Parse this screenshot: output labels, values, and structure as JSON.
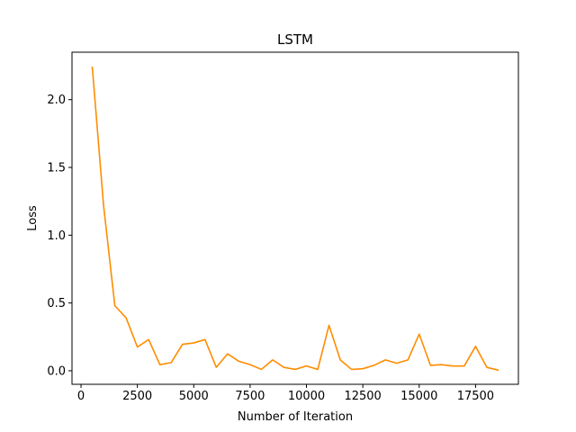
{
  "chart_data": {
    "type": "line",
    "title": "LSTM",
    "xlabel": "Number of Iteration",
    "ylabel": "Loss",
    "xlim": [
      -400,
      19400
    ],
    "ylim": [
      -0.1,
      2.35
    ],
    "grid": false,
    "x_ticks": [
      0,
      2500,
      5000,
      7500,
      10000,
      12500,
      15000,
      17500
    ],
    "x_tick_labels": [
      "0",
      "2500",
      "5000",
      "7500",
      "10000",
      "12500",
      "15000",
      "17500"
    ],
    "y_ticks": [
      0.0,
      0.5,
      1.0,
      1.5,
      2.0
    ],
    "y_tick_labels": [
      "0.0",
      "0.5",
      "1.0",
      "1.5",
      "2.0"
    ],
    "series": [
      {
        "color": "#ff8c00",
        "x": [
          500,
          1000,
          1500,
          2000,
          2500,
          3000,
          3500,
          4000,
          4500,
          5000,
          5500,
          6000,
          6500,
          7000,
          7500,
          8000,
          8500,
          9000,
          9500,
          10000,
          10500,
          11000,
          11500,
          12000,
          12500,
          13000,
          13500,
          14000,
          14500,
          15000,
          15500,
          16000,
          16500,
          17000,
          17500,
          18000,
          18500
        ],
        "y": [
          2.24,
          1.22,
          0.48,
          0.39,
          0.175,
          0.23,
          0.045,
          0.06,
          0.195,
          0.205,
          0.23,
          0.025,
          0.125,
          0.07,
          0.045,
          0.01,
          0.08,
          0.025,
          0.01,
          0.035,
          0.01,
          0.335,
          0.08,
          0.01,
          0.015,
          0.04,
          0.08,
          0.055,
          0.08,
          0.27,
          0.04,
          0.045,
          0.035,
          0.035,
          0.18,
          0.025,
          0.005
        ]
      }
    ]
  }
}
